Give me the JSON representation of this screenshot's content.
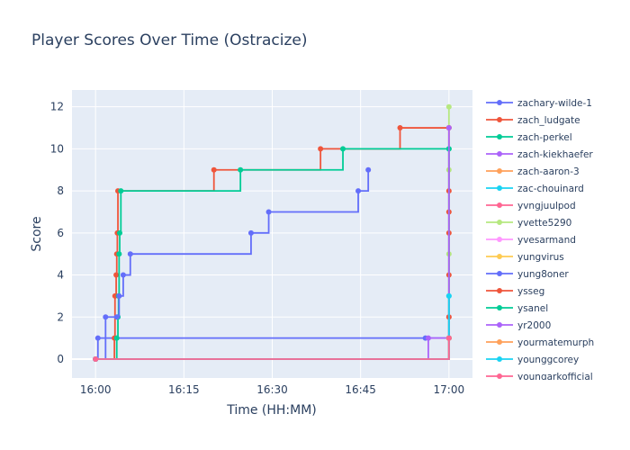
{
  "chart_data": {
    "type": "line",
    "title": "Player Scores Over Time (Ostracize)",
    "xlabel": "Time (HH:MM)",
    "ylabel": "Score",
    "x_ticks": [
      "16:00",
      "16:15",
      "16:30",
      "16:45",
      "17:00"
    ],
    "x_tick_minutes": [
      0,
      15,
      30,
      45,
      60
    ],
    "xlim_minutes": [
      -4,
      64
    ],
    "ylim": [
      -0.9,
      12.8
    ],
    "y_ticks": [
      0,
      2,
      4,
      6,
      8,
      10,
      12
    ],
    "grid": true,
    "legend_placement": "right",
    "line_shape": "step",
    "series": [
      {
        "name": "zachary-wilde-1",
        "color": "#636efa",
        "x": [
          0,
          0.4,
          56,
          60
        ],
        "y": [
          0,
          1,
          1,
          1
        ]
      },
      {
        "name": "zach_ludgate",
        "color": "#ef553b",
        "x": [
          0,
          3.2,
          3.3,
          3.5,
          3.6,
          3.7,
          3.8,
          20.1,
          38.2,
          51.7,
          60
        ],
        "y": [
          0,
          1,
          3,
          4,
          5,
          6,
          8,
          9,
          10,
          11,
          11
        ]
      },
      {
        "name": "zach-perkel",
        "color": "#00cc96",
        "x": [
          0,
          3.6,
          3.8,
          3.9,
          4.0,
          4.1,
          4.3,
          24.6,
          42.0,
          60
        ],
        "y": [
          0,
          1,
          2,
          3,
          5,
          6,
          8,
          9,
          10,
          10
        ]
      },
      {
        "name": "zach-kiekhaefer",
        "color": "#ab63fa",
        "x": [
          0,
          56.5,
          60
        ],
        "y": [
          0,
          1,
          1
        ]
      },
      {
        "name": "zach-aaron-3",
        "color": "#ffa15a",
        "x": [
          0,
          60
        ],
        "y": [
          0,
          1
        ]
      },
      {
        "name": "zac-chouinard",
        "color": "#19d3f3",
        "x": [
          0,
          60
        ],
        "y": [
          0,
          3
        ]
      },
      {
        "name": "yvngjuulpod",
        "color": "#ff6692",
        "x": [
          0,
          60
        ],
        "y": [
          0,
          2
        ]
      },
      {
        "name": "yvette5290",
        "color": "#b6e880",
        "x": [
          0,
          60,
          60,
          60,
          60
        ],
        "y": [
          0,
          1,
          5,
          9,
          12
        ]
      },
      {
        "name": "yvesarmand",
        "color": "#ff97ff",
        "x": [
          0,
          60
        ],
        "y": [
          0,
          1
        ]
      },
      {
        "name": "yungvirus",
        "color": "#fecb52",
        "x": [
          0,
          60
        ],
        "y": [
          0,
          1
        ]
      },
      {
        "name": "yung8oner",
        "color": "#636efa",
        "x": [
          0,
          1.7,
          3.6,
          4.0,
          4.7,
          5.9,
          26.4,
          29.4,
          44.6,
          46.3
        ],
        "y": [
          0,
          2,
          2,
          3,
          4,
          5,
          6,
          7,
          8,
          9
        ]
      },
      {
        "name": "ysseg",
        "color": "#ef553b",
        "x": [
          0,
          60,
          60,
          60,
          60,
          60,
          60,
          60
        ],
        "y": [
          0,
          1,
          2,
          4,
          6,
          7,
          8,
          11
        ]
      },
      {
        "name": "ysanel",
        "color": "#00cc96",
        "x": [
          0,
          60,
          60
        ],
        "y": [
          0,
          1,
          10
        ]
      },
      {
        "name": "yr2000",
        "color": "#ab63fa",
        "x": [
          0,
          60
        ],
        "y": [
          0,
          11
        ]
      },
      {
        "name": "yourmatemurph",
        "color": "#ffa15a",
        "x": [
          0,
          60
        ],
        "y": [
          0,
          1
        ]
      },
      {
        "name": "younggcorey",
        "color": "#19d3f3",
        "x": [
          0,
          60
        ],
        "y": [
          0,
          3
        ]
      },
      {
        "name": "youngarkofficial",
        "color": "#ff6692",
        "x": [
          0,
          60
        ],
        "y": [
          0,
          1
        ]
      }
    ]
  }
}
